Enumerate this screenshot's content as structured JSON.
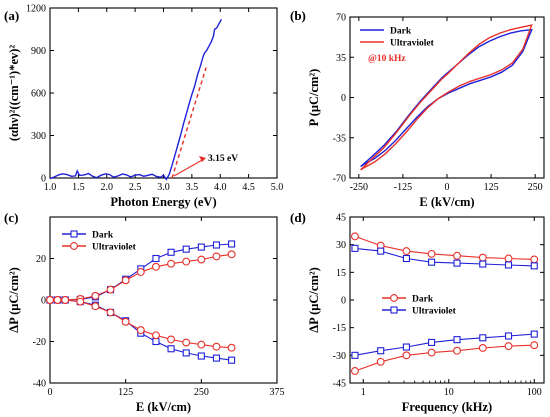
{
  "chart_data": [
    {
      "panel": "(a)",
      "type": "line",
      "xlabel": "Photon Energy (eV)",
      "ylabel": "(αhν)²((cm⁻¹)*ev)²",
      "xlim": [
        1.0,
        5.0
      ],
      "ylim": [
        0,
        1200
      ],
      "xticks": [
        "1.0",
        "1.5",
        "2.0",
        "2.5",
        "3.0",
        "3.5",
        "4.0",
        "4.5",
        "5.0"
      ],
      "yticks": [
        "0",
        "300",
        "600",
        "900",
        "1200"
      ],
      "annotation": "3.15 eV",
      "series": [
        {
          "color": "#2020d8",
          "x": [
            1.0,
            1.08,
            1.15,
            1.22,
            1.3,
            1.38,
            1.45,
            1.48,
            1.52,
            1.6,
            1.68,
            1.75,
            1.82,
            1.9,
            1.98,
            2.05,
            2.12,
            2.2,
            2.28,
            2.35,
            2.42,
            2.5,
            2.58,
            2.65,
            2.72,
            2.8,
            2.88,
            2.95,
            3.0,
            3.05,
            3.1,
            3.15,
            3.2,
            3.25,
            3.3,
            3.35,
            3.4,
            3.45,
            3.5,
            3.55,
            3.6,
            3.65,
            3.7,
            3.72,
            3.76,
            3.8,
            3.84,
            3.88,
            3.9,
            3.94,
            3.98,
            4.02
          ],
          "y": [
            -5,
            8,
            22,
            30,
            24,
            12,
            15,
            50,
            18,
            22,
            32,
            12,
            2,
            20,
            30,
            24,
            6,
            15,
            28,
            22,
            8,
            20,
            24,
            12,
            18,
            26,
            10,
            6,
            20,
            -10,
            25,
            90,
            160,
            230,
            300,
            380,
            450,
            520,
            590,
            650,
            730,
            790,
            860,
            880,
            900,
            930,
            960,
            1000,
            1050,
            1060,
            1090,
            1120
          ]
        },
        {
          "color": "#e8302a",
          "dash": true,
          "x": [
            3.15,
            3.75
          ],
          "y": [
            0,
            780
          ]
        }
      ]
    },
    {
      "panel": "(b)",
      "type": "line",
      "xlabel": "E (kV/cm)",
      "ylabel": "P (μC/cm²)",
      "xlim": [
        -275,
        275
      ],
      "ylim": [
        -70,
        70
      ],
      "xticks": [
        "-250",
        "-125",
        "0",
        "125",
        "250"
      ],
      "yticks": [
        "-70",
        "-35",
        "0",
        "35",
        "70"
      ],
      "annotation": "@10 kHz",
      "series": [
        {
          "name": "Dark",
          "color": "#2020d8",
          "x": [
            -245,
            -215,
            -180,
            -145,
            -110,
            -75,
            -45,
            -15,
            0,
            30,
            60,
            90,
            120,
            150,
            180,
            210,
            240,
            240,
            215,
            185,
            155,
            125,
            95,
            65,
            35,
            5,
            -25,
            -55,
            -85,
            -115,
            -145,
            -175,
            -205,
            -235,
            -245
          ],
          "y": [
            -60,
            -52,
            -42,
            -30,
            -16,
            -3,
            7,
            17,
            21,
            29,
            37,
            44,
            49,
            53,
            56,
            58,
            59,
            59,
            40,
            28,
            22,
            18,
            15,
            12,
            8,
            4,
            -1,
            -8,
            -17,
            -27,
            -37,
            -46,
            -53,
            -58,
            -60
          ]
        },
        {
          "name": "Ultraviolet",
          "color": "#e8302a",
          "x": [
            -245,
            -215,
            -180,
            -145,
            -110,
            -75,
            -45,
            -15,
            0,
            30,
            60,
            90,
            120,
            150,
            180,
            210,
            240,
            240,
            215,
            185,
            155,
            125,
            95,
            65,
            35,
            5,
            -25,
            -55,
            -85,
            -115,
            -145,
            -175,
            -205,
            -235,
            -245
          ],
          "y": [
            -63,
            -54,
            -44,
            -31,
            -17,
            -4,
            6,
            16,
            20,
            29,
            38,
            46,
            52,
            56,
            59,
            61,
            63,
            63,
            42,
            30,
            24,
            20,
            17,
            14,
            10,
            5,
            -1,
            -9,
            -19,
            -30,
            -40,
            -49,
            -56,
            -61,
            -63
          ]
        }
      ]
    },
    {
      "panel": "(c)",
      "type": "line",
      "xlabel": "E (kV/cm)",
      "ylabel": "ΔP (μC/cm²)",
      "xlim": [
        0,
        375
      ],
      "ylim": [
        -40,
        40
      ],
      "xticks": [
        "0",
        "125",
        "250",
        "375"
      ],
      "yticks": [
        "-40",
        "-20",
        "0",
        "20"
      ],
      "categories_x": [
        0,
        12.5,
        25,
        50,
        75,
        100,
        125,
        150,
        175,
        200,
        225,
        250,
        275,
        300
      ],
      "series": [
        {
          "name": "Dark",
          "color": "#2020d8",
          "marker": "square",
          "x": [
            0,
            12.5,
            25,
            50,
            75,
            100,
            125,
            150,
            175,
            200,
            225,
            250,
            275,
            300
          ],
          "y": [
            0,
            0,
            0,
            0.3,
            1.5,
            5,
            10,
            15,
            20,
            23,
            24.5,
            25.5,
            26.5,
            27
          ]
        },
        {
          "name": "Dark",
          "color": "#2020d8",
          "marker": "square",
          "x": [
            0,
            12.5,
            25,
            50,
            75,
            100,
            125,
            150,
            175,
            200,
            225,
            250,
            275,
            300
          ],
          "y": [
            0,
            0,
            0,
            -0.8,
            -2.5,
            -6,
            -10,
            -16,
            -20,
            -23.5,
            -25.5,
            -27,
            -28,
            -29
          ]
        },
        {
          "name": "Ultraviolet",
          "color": "#e8302a",
          "marker": "circle",
          "x": [
            0,
            12.5,
            25,
            50,
            75,
            100,
            125,
            150,
            175,
            200,
            225,
            250,
            275,
            300
          ],
          "y": [
            0,
            0,
            0,
            0.5,
            2,
            5,
            9.5,
            13.5,
            16,
            17.5,
            18.5,
            19.5,
            21,
            22
          ]
        },
        {
          "name": "Ultraviolet",
          "color": "#e8302a",
          "marker": "circle",
          "x": [
            0,
            12.5,
            25,
            50,
            75,
            100,
            125,
            150,
            175,
            200,
            225,
            250,
            275,
            300
          ],
          "y": [
            0,
            0,
            0,
            -0.8,
            -3,
            -6,
            -10.5,
            -14.5,
            -17,
            -19,
            -20.5,
            -21.5,
            -22.5,
            -23
          ]
        }
      ]
    },
    {
      "panel": "(d)",
      "type": "line",
      "xlabel": "Frequency (kHz)",
      "ylabel": "ΔP (μC/cm²)",
      "xscale": "log",
      "xlim": [
        0.7,
        130
      ],
      "ylim": [
        -45,
        45
      ],
      "xticks": [
        "1",
        "10",
        "100"
      ],
      "yticks": [
        "-45",
        "-30",
        "-15",
        "0",
        "15",
        "30",
        "45"
      ],
      "series": [
        {
          "name": "Dark",
          "color": "#e8302a",
          "marker": "circle",
          "x": [
            0.8,
            1.6,
            3.2,
            6.3,
            12.5,
            25,
            50,
            100
          ],
          "y": [
            34.5,
            29.5,
            26.5,
            25,
            24,
            23,
            22.5,
            22
          ]
        },
        {
          "name": "Dark",
          "color": "#e8302a",
          "marker": "circle",
          "x": [
            0.8,
            1.6,
            3.2,
            6.3,
            12.5,
            25,
            50,
            100
          ],
          "y": [
            -38.5,
            -33.5,
            -30,
            -28.5,
            -27.5,
            -26,
            -25,
            -24.5
          ]
        },
        {
          "name": "Ultraviolet",
          "color": "#2020d8",
          "marker": "square",
          "x": [
            0.8,
            1.6,
            3.2,
            6.3,
            12.5,
            25,
            50,
            100
          ],
          "y": [
            28,
            26.5,
            22.5,
            20.5,
            20,
            19.5,
            19,
            18.5
          ]
        },
        {
          "name": "Ultraviolet",
          "color": "#2020d8",
          "marker": "square",
          "x": [
            0.8,
            1.6,
            3.2,
            6.3,
            12.5,
            25,
            50,
            100
          ],
          "y": [
            -30,
            -27.5,
            -25.5,
            -23,
            -21.5,
            -20.5,
            -19.5,
            -18.5
          ]
        }
      ]
    }
  ]
}
